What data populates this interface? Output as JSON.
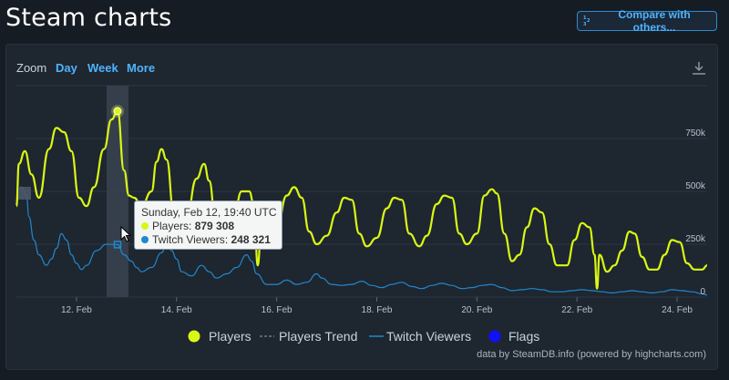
{
  "page": {
    "title": "Steam charts",
    "compare_button": "Compare with others...",
    "compare_icon": "1-2-3 list icon"
  },
  "toolbar": {
    "zoom_label": "Zoom",
    "zoom_options": [
      "Day",
      "Week",
      "More"
    ],
    "download_icon": "download-icon"
  },
  "tooltip": {
    "date": "Sunday, Feb 12, 19:40 UTC",
    "players_label": "Players",
    "players_value": "879 308",
    "twitch_label": "Twitch Viewers",
    "twitch_value": "248 321"
  },
  "legend": [
    "Players",
    "Players Trend",
    "Twitch Viewers",
    "Flags"
  ],
  "credit": "data by SteamDB.info (powered by highcharts.com)",
  "colors": {
    "players": "#d9f714",
    "twitch": "#2288cc",
    "flags": "#1010ff",
    "trend": "#6b7a89",
    "background": "#1e2630"
  },
  "chart_data": {
    "type": "line",
    "x_ticks": [
      "12. Feb",
      "14. Feb",
      "16. Feb",
      "18. Feb",
      "20. Feb",
      "22. Feb",
      "24. Feb"
    ],
    "y_ticks": [
      "0",
      "250k",
      "500k",
      "750k"
    ],
    "ylim": [
      0,
      1000000
    ],
    "xlim": [
      10.8,
      24.6
    ],
    "grid": true,
    "legend_position": "bottom",
    "highlighted_x": 12.82,
    "series": [
      {
        "name": "Players",
        "points": [
          [
            10.8,
            430000
          ],
          [
            10.85,
            630000
          ],
          [
            10.97,
            690000
          ],
          [
            11.1,
            580000
          ],
          [
            11.25,
            470000
          ],
          [
            11.45,
            700000
          ],
          [
            11.6,
            800000
          ],
          [
            11.75,
            780000
          ],
          [
            11.9,
            690000
          ],
          [
            12.05,
            470000
          ],
          [
            12.2,
            430000
          ],
          [
            12.35,
            520000
          ],
          [
            12.55,
            700000
          ],
          [
            12.7,
            840000
          ],
          [
            12.82,
            879308
          ],
          [
            12.95,
            600000
          ],
          [
            13.05,
            480000
          ],
          [
            13.15,
            470000
          ],
          [
            13.3,
            430000
          ],
          [
            13.5,
            500000
          ],
          [
            13.6,
            640000
          ],
          [
            13.7,
            700000
          ],
          [
            13.8,
            650000
          ],
          [
            13.95,
            390000
          ],
          [
            14.05,
            330000
          ],
          [
            14.2,
            380000
          ],
          [
            14.4,
            560000
          ],
          [
            14.55,
            630000
          ],
          [
            14.65,
            550000
          ],
          [
            14.8,
            300000
          ],
          [
            14.95,
            250000
          ],
          [
            15.1,
            300000
          ],
          [
            15.3,
            500000
          ],
          [
            15.45,
            500000
          ],
          [
            15.55,
            430000
          ],
          [
            15.62,
            150000
          ],
          [
            15.7,
            350000
          ],
          [
            15.85,
            290000
          ],
          [
            16.0,
            320000
          ],
          [
            16.2,
            480000
          ],
          [
            16.35,
            520000
          ],
          [
            16.5,
            470000
          ],
          [
            16.65,
            310000
          ],
          [
            16.8,
            250000
          ],
          [
            17.0,
            290000
          ],
          [
            17.2,
            400000
          ],
          [
            17.35,
            470000
          ],
          [
            17.5,
            460000
          ],
          [
            17.65,
            300000
          ],
          [
            17.8,
            240000
          ],
          [
            18.0,
            280000
          ],
          [
            18.2,
            420000
          ],
          [
            18.35,
            470000
          ],
          [
            18.5,
            460000
          ],
          [
            18.65,
            300000
          ],
          [
            18.85,
            240000
          ],
          [
            19.0,
            290000
          ],
          [
            19.2,
            440000
          ],
          [
            19.35,
            480000
          ],
          [
            19.5,
            470000
          ],
          [
            19.65,
            300000
          ],
          [
            19.8,
            250000
          ],
          [
            20.0,
            300000
          ],
          [
            20.15,
            480000
          ],
          [
            20.3,
            510000
          ],
          [
            20.4,
            490000
          ],
          [
            20.55,
            300000
          ],
          [
            20.7,
            170000
          ],
          [
            20.85,
            200000
          ],
          [
            21.0,
            330000
          ],
          [
            21.15,
            420000
          ],
          [
            21.3,
            400000
          ],
          [
            21.45,
            250000
          ],
          [
            21.6,
            150000
          ],
          [
            21.8,
            150000
          ],
          [
            21.95,
            270000
          ],
          [
            22.1,
            350000
          ],
          [
            22.25,
            330000
          ],
          [
            22.35,
            200000
          ],
          [
            22.4,
            40000
          ],
          [
            22.45,
            200000
          ],
          [
            22.6,
            120000
          ],
          [
            22.75,
            150000
          ],
          [
            22.9,
            220000
          ],
          [
            23.05,
            310000
          ],
          [
            23.15,
            300000
          ],
          [
            23.3,
            190000
          ],
          [
            23.45,
            130000
          ],
          [
            23.6,
            130000
          ],
          [
            23.75,
            200000
          ],
          [
            23.9,
            270000
          ],
          [
            24.05,
            260000
          ],
          [
            24.2,
            160000
          ],
          [
            24.35,
            130000
          ],
          [
            24.5,
            130000
          ],
          [
            24.6,
            150000
          ]
        ]
      },
      {
        "name": "Twitch Viewers",
        "points": [
          [
            10.8,
            500000
          ],
          [
            10.9,
            520000
          ],
          [
            11.0,
            480000
          ],
          [
            11.05,
            380000
          ],
          [
            11.15,
            270000
          ],
          [
            11.25,
            200000
          ],
          [
            11.4,
            150000
          ],
          [
            11.5,
            180000
          ],
          [
            11.6,
            230000
          ],
          [
            11.7,
            300000
          ],
          [
            11.8,
            270000
          ],
          [
            11.9,
            200000
          ],
          [
            12.0,
            160000
          ],
          [
            12.1,
            130000
          ],
          [
            12.2,
            150000
          ],
          [
            12.4,
            220000
          ],
          [
            12.6,
            250000
          ],
          [
            12.82,
            248321
          ],
          [
            12.95,
            200000
          ],
          [
            13.1,
            170000
          ],
          [
            13.2,
            140000
          ],
          [
            13.3,
            120000
          ],
          [
            13.5,
            140000
          ],
          [
            13.7,
            210000
          ],
          [
            13.8,
            250000
          ],
          [
            13.9,
            220000
          ],
          [
            14.0,
            180000
          ],
          [
            14.1,
            120000
          ],
          [
            14.3,
            100000
          ],
          [
            14.5,
            150000
          ],
          [
            14.65,
            120000
          ],
          [
            14.8,
            90000
          ],
          [
            15.0,
            110000
          ],
          [
            15.2,
            140000
          ],
          [
            15.4,
            200000
          ],
          [
            15.5,
            170000
          ],
          [
            15.6,
            110000
          ],
          [
            15.8,
            60000
          ],
          [
            16.0,
            60000
          ],
          [
            16.2,
            80000
          ],
          [
            16.4,
            60000
          ],
          [
            16.6,
            70000
          ],
          [
            16.8,
            110000
          ],
          [
            16.9,
            90000
          ],
          [
            17.1,
            60000
          ],
          [
            17.3,
            55000
          ],
          [
            17.5,
            60000
          ],
          [
            17.7,
            75000
          ],
          [
            17.9,
            55000
          ],
          [
            18.1,
            45000
          ],
          [
            18.3,
            60000
          ],
          [
            18.5,
            70000
          ],
          [
            18.7,
            50000
          ],
          [
            18.9,
            40000
          ],
          [
            19.1,
            55000
          ],
          [
            19.3,
            65000
          ],
          [
            19.5,
            55000
          ],
          [
            19.7,
            40000
          ],
          [
            19.9,
            45000
          ],
          [
            20.1,
            55000
          ],
          [
            20.3,
            60000
          ],
          [
            20.5,
            45000
          ],
          [
            20.7,
            30000
          ],
          [
            20.9,
            35000
          ],
          [
            21.1,
            40000
          ],
          [
            21.3,
            35000
          ],
          [
            21.5,
            25000
          ],
          [
            21.7,
            25000
          ],
          [
            21.9,
            30000
          ],
          [
            22.1,
            35000
          ],
          [
            22.3,
            30000
          ],
          [
            22.5,
            25000
          ],
          [
            22.7,
            20000
          ],
          [
            22.9,
            25000
          ],
          [
            23.1,
            30000
          ],
          [
            23.3,
            25000
          ],
          [
            23.5,
            20000
          ],
          [
            23.7,
            25000
          ],
          [
            23.9,
            35000
          ],
          [
            24.1,
            30000
          ],
          [
            24.3,
            25000
          ],
          [
            24.5,
            15000
          ],
          [
            24.6,
            10000
          ]
        ]
      }
    ]
  }
}
